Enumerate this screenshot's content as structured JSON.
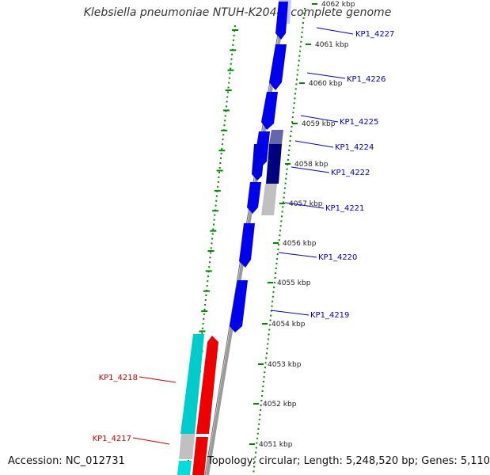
{
  "title": "Klebsiella pneumoniae NTUH-K2044, complete genome",
  "footer": {
    "accession": "Accession: NC_012731",
    "stats": "Topology: circular; Length: 5,248,520 bp; Genes: 5,110"
  },
  "colors": {
    "forward_gene": "#0000ee",
    "reverse_gene": "#ee0000",
    "reverse_rna": "#00cccc",
    "dark_gene": "#000080",
    "grey_gene": "#c0c0c0",
    "scale_dots": "#008800",
    "backbone": "#7f7f7f",
    "forward_label": "#0000cc",
    "reverse_label": "#cc0000"
  },
  "scale": {
    "ticks": [
      {
        "kbp": 4062,
        "label": "4062 kbp"
      },
      {
        "kbp": 4061,
        "label": "4061 kbp"
      },
      {
        "kbp": 4060,
        "label": "4060 kbp"
      },
      {
        "kbp": 4059,
        "label": "4059 kbp"
      },
      {
        "kbp": 4058,
        "label": "4058 kbp"
      },
      {
        "kbp": 4057,
        "label": "4057 kbp"
      },
      {
        "kbp": 4056,
        "label": "4056 kbp"
      },
      {
        "kbp": 4055,
        "label": "4055 kbp"
      },
      {
        "kbp": 4054,
        "label": "4054 kbp"
      },
      {
        "kbp": 4053,
        "label": "4053 kbp"
      },
      {
        "kbp": 4052,
        "label": "4052 kbp"
      },
      {
        "kbp": 4051,
        "label": "4051 kbp"
      }
    ]
  },
  "genes": {
    "forward": [
      {
        "label": "KP1_4227"
      },
      {
        "label": "KP1_4226"
      },
      {
        "label": "KP1_4225"
      },
      {
        "label": "KP1_4224"
      },
      {
        "label": "KP1_4222"
      },
      {
        "label": "KP1_4221"
      },
      {
        "label": "KP1_4220"
      },
      {
        "label": "KP1_4219"
      }
    ],
    "reverse": [
      {
        "label": "KP1_4218"
      },
      {
        "label": "KP1_4217"
      }
    ]
  }
}
